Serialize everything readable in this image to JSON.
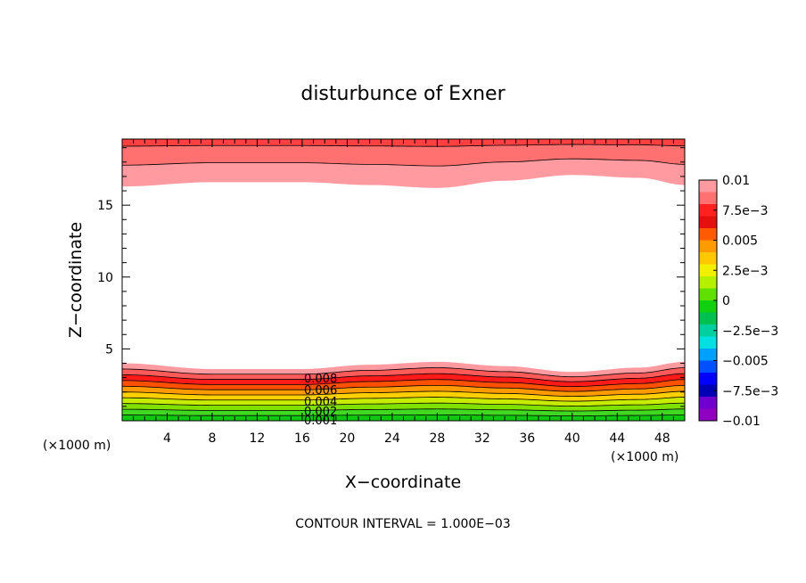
{
  "chart_data": {
    "type": "contour",
    "title": "disturbunce of Exner",
    "xlabel": "X−coordinate",
    "ylabel": "Z−coordinate",
    "x_unit": "(×1000 m)",
    "x_unit_right": "(×1000 m)",
    "xlim": [
      0,
      50
    ],
    "ylim": [
      0,
      19.6
    ],
    "x_ticks": [
      4,
      8,
      12,
      16,
      20,
      24,
      28,
      32,
      36,
      40,
      44,
      48
    ],
    "x_tick_labels": [
      "4",
      "8",
      "12",
      "16",
      "20",
      "24",
      "28",
      "32",
      "36",
      "40",
      "44",
      "48"
    ],
    "y_ticks": [
      5,
      10,
      15
    ],
    "y_tick_labels": [
      "5",
      "10",
      "15"
    ],
    "contour_interval_text": "CONTOUR INTERVAL = 1.000E−03",
    "contour_interval": 0.001,
    "colorbar": {
      "levels": [
        -0.01,
        -0.0075,
        -0.005,
        -0.0025,
        0,
        0.0025,
        0.005,
        0.0075,
        0.01
      ],
      "labels": [
        "0.01",
        "7.5e−3",
        "0.005",
        "2.5e−3",
        "0",
        "−2.5e−3",
        "−0.005",
        "−7.5e−3",
        "−0.01"
      ],
      "colors_top_to_bottom": [
        "#ff9aa0",
        "#ff7070",
        "#ff2020",
        "#e41010",
        "#ff5a00",
        "#ff9a00",
        "#ffc800",
        "#f0f000",
        "#b4f000",
        "#60e000",
        "#10d010",
        "#00c050",
        "#00d0a0",
        "#00e0e0",
        "#00a0ff",
        "#0050ff",
        "#0000ff",
        "#0000b4",
        "#7000d0",
        "#9000c0"
      ]
    },
    "bottom_region": {
      "description_levels": [
        0.001,
        0.002,
        0.003,
        0.004,
        0.005,
        0.006,
        0.007,
        0.008,
        0.009
      ],
      "inline_labels": [
        "0.008",
        "0.006",
        "0.004",
        "0.002",
        "0.001"
      ],
      "top_boundary_z_profile": {
        "x": [
          0,
          8,
          16,
          22,
          28,
          34,
          40,
          46,
          50
        ],
        "z": [
          4.0,
          3.6,
          3.6,
          3.9,
          4.1,
          3.8,
          3.4,
          3.7,
          4.1
        ]
      }
    },
    "top_region": {
      "lower_boundary_z_profile": {
        "x": [
          0,
          8,
          16,
          22,
          28,
          34,
          40,
          46,
          50
        ],
        "z": [
          16.3,
          16.6,
          16.6,
          16.4,
          16.2,
          16.7,
          17.1,
          16.9,
          16.4
        ]
      }
    }
  }
}
